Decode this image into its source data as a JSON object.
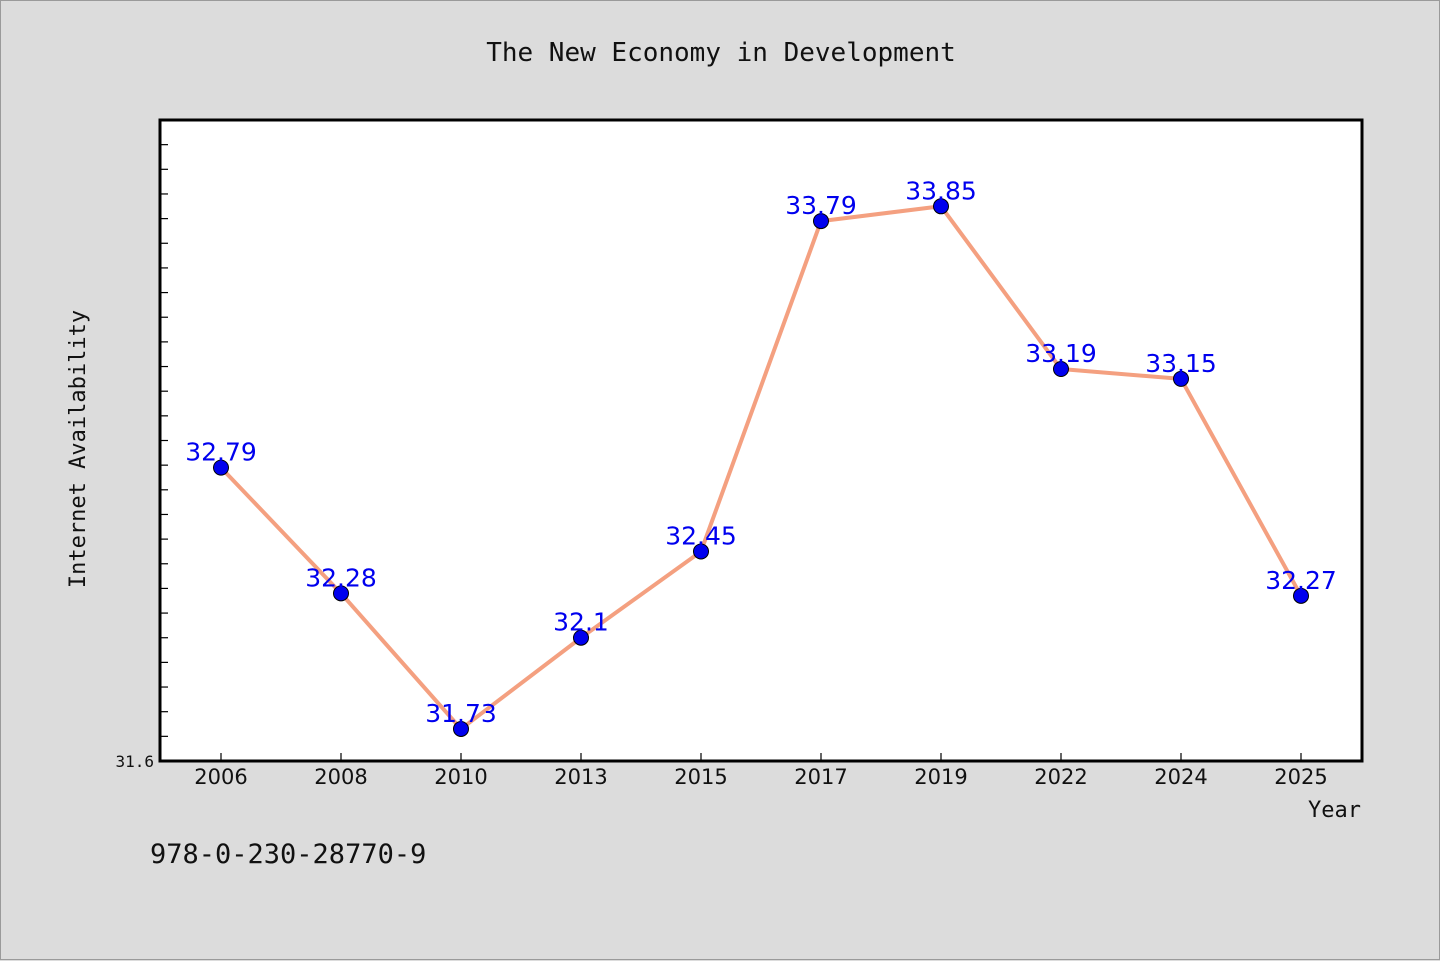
{
  "chart_data": {
    "type": "line",
    "title": "The New Economy in Development",
    "xlabel": "Year",
    "ylabel": "Internet Availability",
    "categories": [
      "2006",
      "2008",
      "2010",
      "2013",
      "2015",
      "2017",
      "2019",
      "2022",
      "2024",
      "2025"
    ],
    "series": [
      {
        "values": [
          32.79,
          32.28,
          31.73,
          32.1,
          32.45,
          33.79,
          33.85,
          33.19,
          33.15,
          32.27
        ],
        "labels": [
          "32.79",
          "32.28",
          "31.73",
          "32.1",
          "32.45",
          "33.79",
          "33.85",
          "33.19",
          "33.15",
          "32.27"
        ]
      }
    ],
    "ylim": [
      31.6,
      34.2
    ],
    "yticks_labeled": [
      "31.6"
    ],
    "grid": false,
    "legend": "none",
    "colors": {
      "line": "#f4a080",
      "marker": "#0000ee",
      "data_label": "#0000ee",
      "plot_background": "#ffffff",
      "page_background": "#dcdcdc"
    }
  },
  "footer": {
    "isbn": "978-0-230-28770-9"
  }
}
